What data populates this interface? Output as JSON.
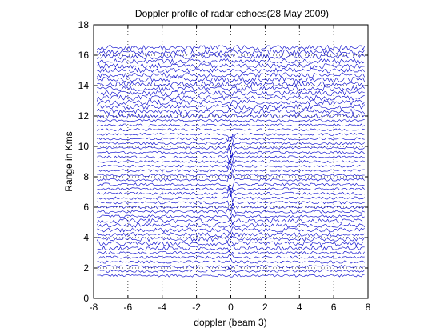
{
  "chart_data": {
    "type": "line",
    "title": "Doppler profile of radar echoes(28 May 2009)",
    "xlabel": "doppler (beam 3)",
    "ylabel": "Range in Kms",
    "xlim": [
      -8,
      8
    ],
    "ylim": [
      0,
      18
    ],
    "xticks": [
      -8,
      -6,
      -4,
      -2,
      0,
      2,
      4,
      6,
      8
    ],
    "yticks": [
      0,
      2,
      4,
      6,
      8,
      10,
      12,
      14,
      16,
      18
    ],
    "grid": "dotted",
    "line_color": "#0000cc",
    "range_gates_km": {
      "start": 1.5,
      "end": 16.5,
      "step": 0.3
    },
    "echo_peak_doppler": 0,
    "series_description": "stacked doppler spectra, one trace per range gate, offset by range"
  }
}
